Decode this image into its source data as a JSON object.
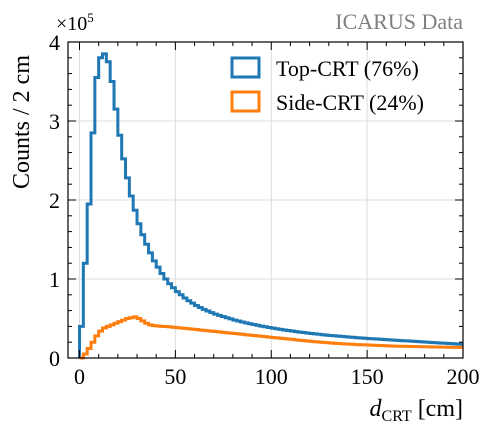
{
  "chart_data": {
    "type": "step-histogram",
    "watermark": "ICARUS Data",
    "y_multiplier": {
      "base": "×10",
      "exponent": "5"
    },
    "ylabel": "Counts / 2 cm",
    "xlabel": {
      "main": "d",
      "subscript": "CRT",
      "unit": " [cm]"
    },
    "xlim": [
      -6,
      200
    ],
    "ylim": [
      0,
      4
    ],
    "x_ticks": [
      0,
      50,
      100,
      150,
      200
    ],
    "x_tick_labels": [
      "0",
      "50",
      "100",
      "150",
      "200"
    ],
    "y_ticks": [
      0,
      1,
      2,
      3,
      4
    ],
    "y_tick_labels": [
      "0",
      "1",
      "2",
      "3",
      "4"
    ],
    "grid": true,
    "legend_position": "top-right",
    "bin_width": 2,
    "series": [
      {
        "name": "Top-CRT (76%)",
        "color": "#1f77b4",
        "bin_start": 0,
        "values": [
          0.4,
          1.2,
          1.95,
          2.85,
          3.55,
          3.8,
          3.85,
          3.75,
          3.5,
          3.15,
          2.82,
          2.52,
          2.28,
          2.05,
          1.87,
          1.7,
          1.56,
          1.44,
          1.33,
          1.23,
          1.15,
          1.07,
          1.0,
          0.94,
          0.89,
          0.84,
          0.8,
          0.76,
          0.725,
          0.695,
          0.665,
          0.64,
          0.615,
          0.595,
          0.575,
          0.555,
          0.54,
          0.525,
          0.51,
          0.495,
          0.48,
          0.468,
          0.456,
          0.445,
          0.434,
          0.424,
          0.414,
          0.404,
          0.395,
          0.386,
          0.378,
          0.37,
          0.362,
          0.355,
          0.348,
          0.341,
          0.334,
          0.328,
          0.322,
          0.316,
          0.31,
          0.305,
          0.3,
          0.295,
          0.29,
          0.285,
          0.281,
          0.277,
          0.273,
          0.269,
          0.265,
          0.261,
          0.257,
          0.253,
          0.25,
          0.246,
          0.243,
          0.24,
          0.237,
          0.234,
          0.231,
          0.228,
          0.225,
          0.222,
          0.219,
          0.216,
          0.213,
          0.21,
          0.207,
          0.204,
          0.201,
          0.198,
          0.195,
          0.192,
          0.189,
          0.186,
          0.183,
          0.18,
          0.177,
          0.174
        ]
      },
      {
        "name": "Side-CRT (24%)",
        "color": "#ff7f0e",
        "bin_start": 0,
        "values": [
          0.0,
          0.05,
          0.12,
          0.2,
          0.28,
          0.34,
          0.38,
          0.4,
          0.42,
          0.44,
          0.46,
          0.48,
          0.5,
          0.51,
          0.52,
          0.5,
          0.47,
          0.44,
          0.42,
          0.41,
          0.405,
          0.4,
          0.398,
          0.395,
          0.39,
          0.385,
          0.38,
          0.375,
          0.37,
          0.365,
          0.36,
          0.355,
          0.35,
          0.345,
          0.34,
          0.335,
          0.33,
          0.325,
          0.32,
          0.315,
          0.31,
          0.305,
          0.3,
          0.295,
          0.29,
          0.285,
          0.28,
          0.275,
          0.27,
          0.265,
          0.26,
          0.255,
          0.25,
          0.245,
          0.24,
          0.235,
          0.23,
          0.225,
          0.22,
          0.215,
          0.21,
          0.206,
          0.202,
          0.198,
          0.194,
          0.19,
          0.187,
          0.184,
          0.181,
          0.178,
          0.175,
          0.172,
          0.17,
          0.168,
          0.166,
          0.164,
          0.162,
          0.16,
          0.158,
          0.156,
          0.154,
          0.152,
          0.15,
          0.149,
          0.148,
          0.147,
          0.146,
          0.145,
          0.144,
          0.143,
          0.142,
          0.141,
          0.14,
          0.139,
          0.138,
          0.137,
          0.136,
          0.135,
          0.134,
          0.133
        ]
      }
    ]
  }
}
